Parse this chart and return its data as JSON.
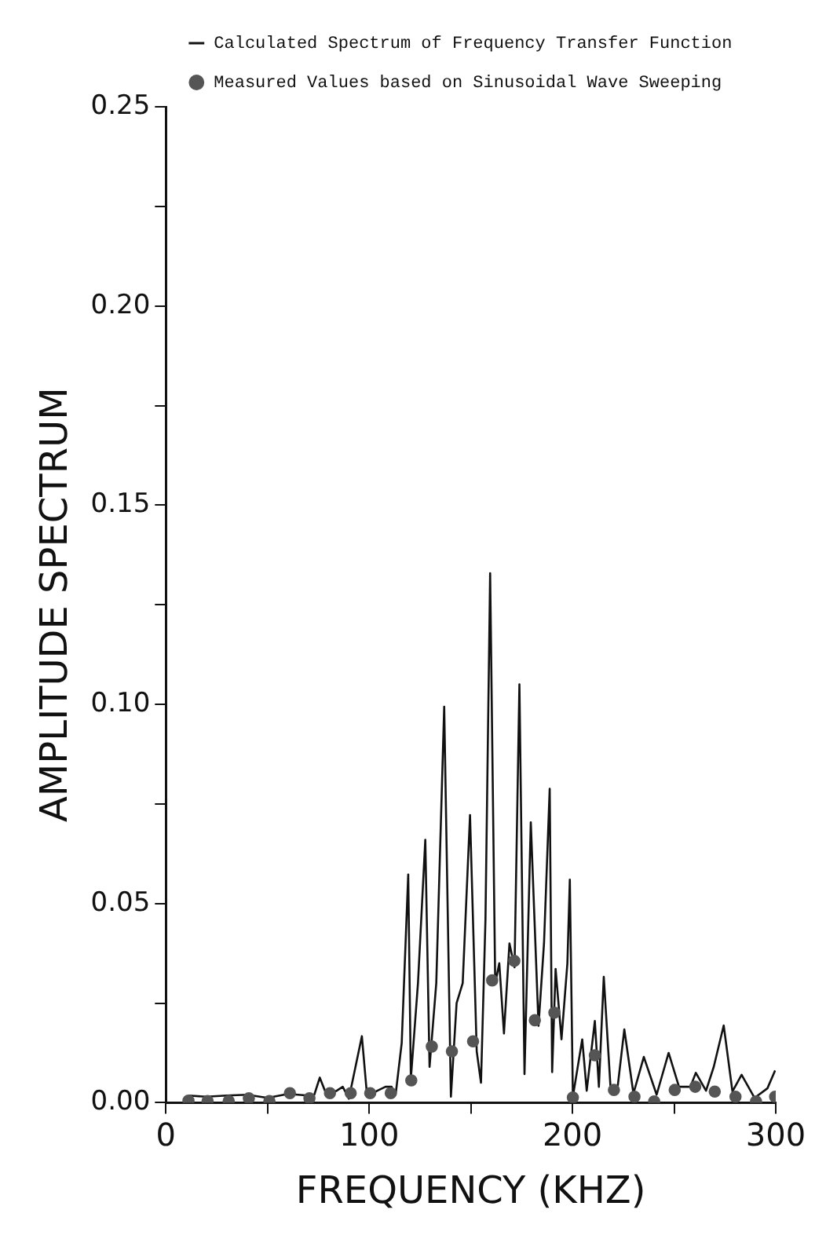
{
  "chart_data": {
    "type": "line",
    "xlabel": "FREQUENCY (KHZ)",
    "ylabel": "AMPLITUDE SPECTRUM",
    "xlim": [
      0,
      300
    ],
    "xticks": [
      0,
      {
        "value": 50,
        "label": null
      },
      100,
      {
        "value": 150,
        "label": null
      },
      200,
      {
        "value": 250,
        "label": null
      },
      300
    ],
    "ylim": [
      0,
      0.25
    ],
    "yticks": [
      {
        "value": 0,
        "label": "0.00"
      },
      {
        "value": 0.025,
        "label": null
      },
      {
        "value": 0.05,
        "label": "0.05"
      },
      {
        "value": 0.075,
        "label": null
      },
      {
        "value": 0.1,
        "label": "0.10"
      },
      {
        "value": 0.125,
        "label": null
      },
      {
        "value": 0.15,
        "label": "0.15"
      },
      {
        "value": 0.175,
        "label": null
      },
      {
        "value": 0.2,
        "label": "0.20"
      },
      {
        "value": 0.225,
        "label": null
      },
      {
        "value": 0.25,
        "label": "0.25"
      }
    ],
    "grid": false,
    "legend": "top left",
    "series": [
      {
        "name": "Calculated Spectrum of Frequency Transfer Function",
        "type": "line",
        "color": "#111111",
        "marker": "none",
        "line_style": "solid",
        "x": [
          11,
          20,
          30,
          40,
          50,
          60,
          70,
          73,
          75.7,
          79,
          84,
          87,
          90,
          96.4,
          99,
          104,
          108,
          111,
          113,
          116,
          119.2,
          120.5,
          124,
          127.6,
          129.7,
          133,
          136.9,
          140.2,
          143,
          146,
          149.6,
          152.9,
          155,
          157.2,
          159.5,
          162,
          164,
          166.3,
          169,
          171.5,
          173.9,
          176.4,
          179.5,
          183.3,
          186,
          188.8,
          190,
          191.7,
          194.6,
          197.5,
          198.7,
          200.2,
          204.8,
          207,
          211,
          213,
          215.4,
          218.7,
          222,
          225.5,
          230,
          235.1,
          241.4,
          247.3,
          252.4,
          258,
          260.7,
          265.7,
          269.5,
          274.4,
          278.7,
          283.2,
          289.6,
          295.9,
          299.7
        ],
        "values": [
          0.0018,
          0.0015,
          0.0018,
          0.002,
          0.0012,
          0.0022,
          0.0018,
          0.002,
          0.0063,
          0.002,
          0.003,
          0.004,
          0.001,
          0.0167,
          0.0015,
          0.003,
          0.004,
          0.004,
          0.002,
          0.015,
          0.0573,
          0.006,
          0.03,
          0.066,
          0.009,
          0.03,
          0.0994,
          0.0015,
          0.025,
          0.03,
          0.0722,
          0.0129,
          0.005,
          0.046,
          0.1329,
          0.03,
          0.035,
          0.0174,
          0.04,
          0.034,
          0.105,
          0.0072,
          0.0704,
          0.0193,
          0.04,
          0.0788,
          0.0077,
          0.0336,
          0.0159,
          0.035,
          0.056,
          0.0015,
          0.0159,
          0.003,
          0.0205,
          0.004,
          0.0316,
          0.004,
          0.003,
          0.0184,
          0.0023,
          0.0115,
          0.002,
          0.0125,
          0.004,
          0.004,
          0.0075,
          0.003,
          0.009,
          0.0194,
          0.0028,
          0.007,
          0.0012,
          0.0036,
          0.0081
        ]
      },
      {
        "name": "Measured Values based on Sinusoidal Wave Sweeping",
        "type": "scatter",
        "color": "#555555",
        "marker": "circle",
        "x": [
          11.1,
          20.5,
          30.9,
          40.8,
          50.9,
          61,
          70.6,
          80.7,
          90.9,
          100.5,
          110.6,
          120.7,
          130.8,
          140.7,
          151.1,
          160.5,
          171.4,
          181.5,
          191.1,
          200.2,
          211,
          220.4,
          230.5,
          240.2,
          250.3,
          260.4,
          270,
          280.2,
          290.3,
          299.7
        ],
        "values": [
          0.0005,
          0.0004,
          0.0004,
          0.0011,
          0.0004,
          0.0024,
          0.0011,
          0.0024,
          0.0024,
          0.0024,
          0.0024,
          0.0056,
          0.0141,
          0.0129,
          0.0154,
          0.0307,
          0.0356,
          0.0207,
          0.0226,
          0.0013,
          0.0119,
          0.0032,
          0.0015,
          0.0003,
          0.0032,
          0.004,
          0.0028,
          0.0015,
          0.0003,
          0.0015
        ]
      }
    ]
  }
}
